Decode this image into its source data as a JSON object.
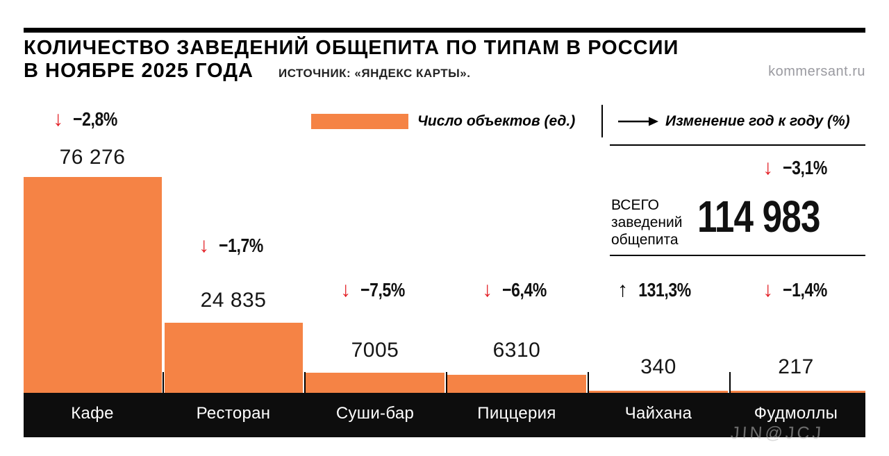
{
  "header": {
    "title_line1": "КОЛИЧЕСТВО ЗАВЕДЕНИЙ ОБЩЕПИТА ПО ТИПАМ В РОССИИ",
    "title_line2": "В НОЯБРЕ 2025 ГОДА",
    "source": "ИСТОЧНИК: «ЯНДЕКС КАРТЫ».",
    "site": "kommersant.ru"
  },
  "legend": {
    "count_label": "Число объектов (ед.)",
    "change_label": "Изменение год к году (%)"
  },
  "icons": {
    "down": "↓",
    "up": "↑"
  },
  "total": {
    "label_line1": "ВСЕГО",
    "label_line2": "заведений",
    "label_line3": "общепита",
    "value": "114 983",
    "change": "−3,1%"
  },
  "watermark": "JIN@JCJ",
  "colors": {
    "bar": "#F58345",
    "negative": "#E31E24",
    "positive": "#000000"
  },
  "chart_data": {
    "type": "bar",
    "title": "Количество заведений общепита по типам в России в ноябре 2025 года",
    "source": "«Яндекс Карты»",
    "legend": [
      "Число объектов (ед.)",
      "Изменение год к году (%)"
    ],
    "categories": [
      "Кафе",
      "Ресторан",
      "Суши-бар",
      "Пиццерия",
      "Чайхана",
      "Фудмоллы"
    ],
    "values": [
      76276,
      24835,
      7005,
      6310,
      340,
      217
    ],
    "value_labels": [
      "76 276",
      "24 835",
      "7005",
      "6310",
      "340",
      "217"
    ],
    "yoy_change_pct": [
      -2.8,
      -1.7,
      -7.5,
      -6.4,
      131.3,
      -1.4
    ],
    "change_labels": [
      "−2,8%",
      "−1,7%",
      "−7,5%",
      "−6,4%",
      "131,3%",
      "−1,4%"
    ],
    "total": 114983,
    "total_label": "ВСЕГО заведений общепита",
    "total_change_pct": -3.1,
    "ylim": [
      0,
      80000
    ],
    "grid": false,
    "bar_color": "#F58345"
  }
}
